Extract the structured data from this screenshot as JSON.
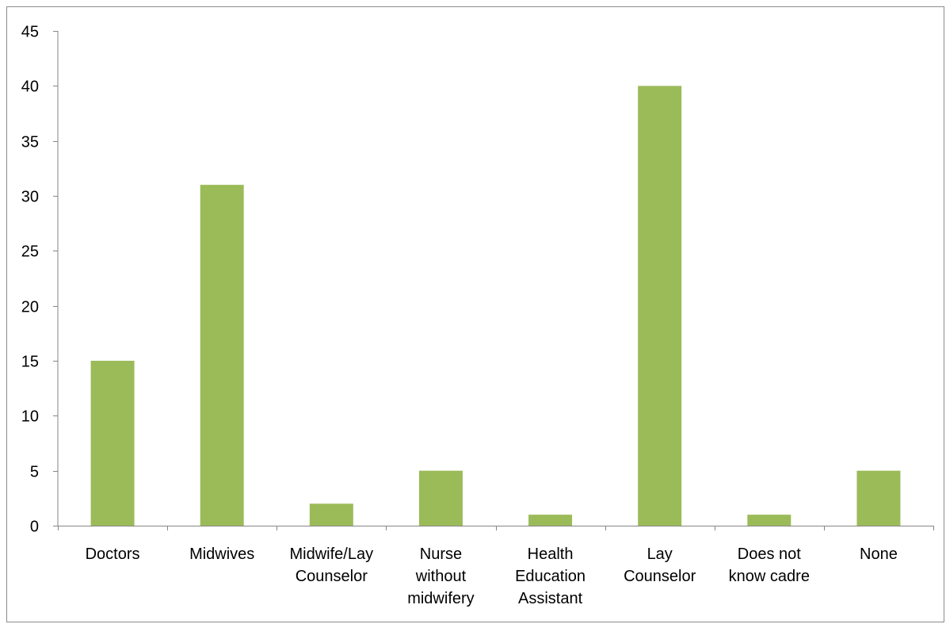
{
  "chart_data": {
    "type": "bar",
    "title": "",
    "xlabel": "",
    "ylabel": "",
    "categories": [
      [
        "Doctors"
      ],
      [
        "Midwives"
      ],
      [
        "Midwife/Lay",
        "Counselor"
      ],
      [
        "Nurse",
        "without",
        "midwifery"
      ],
      [
        "Health",
        "Education",
        "Assistant"
      ],
      [
        "Lay",
        "Counselor"
      ],
      [
        "Does not",
        "know cadre"
      ],
      [
        "None"
      ]
    ],
    "values": [
      15,
      31,
      2,
      5,
      1,
      40,
      1,
      5
    ],
    "ylim": [
      0,
      45
    ],
    "yticks": [
      0,
      5,
      10,
      15,
      20,
      25,
      30,
      35,
      40,
      45
    ],
    "bar_color": "#9bbb59",
    "axis_color": "#868686",
    "grid": false,
    "legend": "none"
  }
}
